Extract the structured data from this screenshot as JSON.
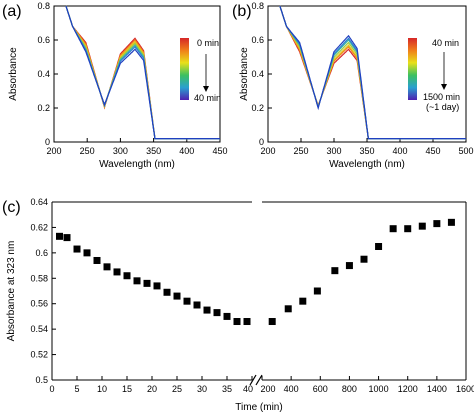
{
  "panels": [
    {
      "label": "(a)",
      "chart_data": {
        "type": "line",
        "xlabel": "Wavelength (nm)",
        "ylabel": "Absorbance",
        "xlim": [
          200,
          450
        ],
        "ylim": [
          0,
          0.8
        ],
        "xticks": [
          "200",
          "250",
          "300",
          "350",
          "400",
          "450"
        ],
        "yticks": [
          "0",
          "0.2",
          "0.4",
          "0.6",
          "0.8"
        ],
        "colorbar": {
          "top": "0 min",
          "bottom": "40 min",
          "extra": ""
        },
        "curve_colors": [
          "#d62728",
          "#f07f1a",
          "#e8c21a",
          "#9ccc3c",
          "#3cb4a8",
          "#2a7fd0",
          "#2040c0"
        ],
        "peak_values": [
          0.61,
          0.6,
          0.59,
          0.58,
          0.57,
          0.56,
          0.545
        ],
        "dip_values": [
          0.205,
          0.205,
          0.21,
          0.215,
          0.215,
          0.215,
          0.22
        ],
        "shoulder_values": [
          0.585,
          0.575,
          0.565,
          0.555,
          0.545,
          0.54,
          0.53
        ]
      }
    },
    {
      "label": "(b)",
      "chart_data": {
        "type": "line",
        "xlabel": "Wavelength (nm)",
        "ylabel": "Absorbance",
        "xlim": [
          200,
          500
        ],
        "ylim": [
          0,
          0.8
        ],
        "xticks": [
          "200",
          "250",
          "300",
          "350",
          "400",
          "450",
          "500"
        ],
        "yticks": [
          "0",
          "0.2",
          "0.4",
          "0.6",
          "0.8"
        ],
        "colorbar": {
          "top": "40 min",
          "bottom": "1500 min",
          "extra": "(~1 day)"
        },
        "curve_colors": [
          "#d62728",
          "#f07f1a",
          "#e8c21a",
          "#9ccc3c",
          "#3cb4a8",
          "#2a7fd0",
          "#2040c0"
        ],
        "peak_values": [
          0.545,
          0.56,
          0.57,
          0.585,
          0.6,
          0.61,
          0.625
        ],
        "dip_values": [
          0.215,
          0.212,
          0.21,
          0.207,
          0.205,
          0.203,
          0.2
        ],
        "shoulder_values": [
          0.53,
          0.54,
          0.55,
          0.56,
          0.57,
          0.575,
          0.585
        ]
      }
    },
    {
      "label": "(c)",
      "chart_data": {
        "type": "scatter",
        "xlabel": "Time (min)",
        "ylabel": "Absorbance at 323 nm",
        "ylim": [
          0.5,
          0.64
        ],
        "yticks": [
          "0.5",
          "0.52",
          "0.54",
          "0.56",
          "0.58",
          "0.6",
          "0.62",
          "0.64"
        ],
        "segment1": {
          "xlim": [
            0,
            40
          ],
          "xticks": [
            "0",
            "5",
            "10",
            "15",
            "20",
            "25",
            "30",
            "35",
            "40"
          ],
          "x": [
            1.5,
            3,
            5,
            7,
            9,
            11,
            13,
            15,
            17,
            19,
            21,
            23,
            25,
            27,
            29,
            31,
            33,
            35,
            37,
            39
          ],
          "y": [
            0.613,
            0.612,
            0.603,
            0.6,
            0.594,
            0.589,
            0.585,
            0.582,
            0.578,
            0.576,
            0.574,
            0.569,
            0.566,
            0.562,
            0.559,
            0.555,
            0.553,
            0.55,
            0.546,
            0.546
          ]
        },
        "segment2": {
          "xlim": [
            200,
            1600
          ],
          "xticks": [
            "200",
            "400",
            "600",
            "800",
            "1000",
            "1200",
            "1400",
            "1600"
          ],
          "x": [
            270,
            380,
            480,
            580,
            700,
            800,
            900,
            1000,
            1100,
            1200,
            1300,
            1400,
            1500
          ],
          "y": [
            0.546,
            0.556,
            0.562,
            0.57,
            0.586,
            0.59,
            0.595,
            0.605,
            0.619,
            0.619,
            0.621,
            0.623,
            0.624
          ]
        }
      }
    }
  ]
}
